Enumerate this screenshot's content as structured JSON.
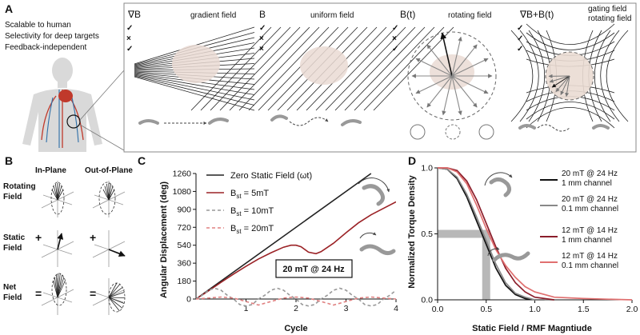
{
  "panel_a": {
    "label": "A",
    "criteria": [
      "Scalable to human",
      "Selectivity for deep targets",
      "Feedback-independent"
    ],
    "fields": [
      {
        "formula": "∇B",
        "name": "gradient field",
        "marks": [
          "✓",
          "×",
          "✓"
        ]
      },
      {
        "formula": "B",
        "name": "uniform field",
        "marks": [
          "✓",
          "×",
          "×"
        ]
      },
      {
        "formula": "B(t)",
        "name": "rotating field",
        "marks": [
          "✓",
          "×",
          "✓"
        ]
      },
      {
        "formula": "∇B+B(t)",
        "name": "gating field",
        "name2": "rotating field",
        "marks": [
          "✓",
          "✓",
          "✓"
        ]
      }
    ],
    "check_color": "#222222",
    "cross_color": "#b03030"
  },
  "panel_b": {
    "label": "B",
    "col_headers": [
      "In-Plane",
      "Out-of-Plane"
    ],
    "rows": [
      {
        "label": [
          "Rotating",
          "Field"
        ],
        "op": ""
      },
      {
        "label": [
          "Static",
          "Field"
        ],
        "op": "+"
      },
      {
        "label": [
          "Net",
          "Field"
        ],
        "op": "="
      }
    ]
  },
  "panel_c": {
    "label": "C",
    "chart_data": {
      "type": "line",
      "xlabel": "Cycle",
      "ylabel": "Angular Displacement (deg)",
      "xlim": [
        0,
        4
      ],
      "ylim": [
        0,
        1260
      ],
      "xticks": [
        1,
        2,
        3,
        4
      ],
      "yticks": [
        0,
        180,
        360,
        540,
        720,
        900,
        1080,
        1260
      ],
      "annotation": "20 mT @ 24 Hz",
      "series": [
        {
          "name": "Zero Static Field (ωt)",
          "legend": [
            "Zero Static Field (ωt)"
          ],
          "color": "#222222",
          "dash": "",
          "x": [
            0,
            3.5
          ],
          "y": [
            0,
            1260
          ]
        },
        {
          "name": "Bst = 5mT",
          "legend": [
            "B",
            "st",
            " = 5mT"
          ],
          "color": "#9b2226",
          "dash": "",
          "x": [
            0,
            0.25,
            0.5,
            0.75,
            1.0,
            1.25,
            1.5,
            1.75,
            1.9,
            2.0,
            2.1,
            2.25,
            2.4,
            2.5,
            2.75,
            3.0,
            3.25,
            3.5,
            3.75,
            4.0
          ],
          "y": [
            0,
            82,
            168,
            250,
            328,
            402,
            465,
            520,
            540,
            540,
            525,
            470,
            455,
            475,
            560,
            665,
            765,
            845,
            910,
            975
          ]
        },
        {
          "name": "Bst = 10mT",
          "legend": [
            "B",
            "st",
            " = 10mT"
          ],
          "color": "#999999",
          "dash": "4,3",
          "x": [
            0,
            0.125,
            0.25,
            0.375,
            0.5,
            0.625,
            0.75,
            0.875,
            1.0,
            1.125,
            1.25,
            1.375,
            1.5,
            1.625,
            1.75,
            1.875,
            2.0,
            2.125,
            2.25,
            2.375,
            2.5,
            2.625,
            2.75,
            2.875,
            3.0,
            3.125,
            3.25,
            3.375,
            3.5,
            3.625,
            3.75,
            3.875,
            4.0
          ],
          "y": [
            0,
            38,
            88,
            108,
            88,
            38,
            0,
            -55,
            -70,
            -55,
            0,
            38,
            88,
            108,
            88,
            38,
            0,
            -55,
            -70,
            -55,
            0,
            38,
            88,
            108,
            88,
            38,
            0,
            -55,
            -70,
            -55,
            0,
            38,
            88
          ]
        },
        {
          "name": "Bst = 20mT",
          "legend": [
            "B",
            "st",
            " = 20mT"
          ],
          "color": "#e08080",
          "dash": "4,3",
          "x": [
            0,
            0.25,
            0.5,
            0.75,
            1.0,
            1.25,
            1.5,
            1.75,
            2.0,
            2.25,
            2.5,
            2.75,
            3.0,
            3.25,
            3.5,
            3.75,
            4.0
          ],
          "y": [
            0,
            10,
            20,
            10,
            -25,
            -60,
            -25,
            10,
            20,
            10,
            -25,
            -60,
            -25,
            10,
            20,
            10,
            0
          ]
        }
      ]
    }
  },
  "panel_d": {
    "label": "D",
    "chart_data": {
      "type": "line",
      "xlabel": "Static Field / RMF Magntiude",
      "ylabel": "Normalized Torque Density",
      "xlim": [
        0,
        2.0
      ],
      "ylim": [
        0,
        1.0
      ],
      "xticks": [
        0.0,
        0.5,
        1.0,
        1.5,
        2.0
      ],
      "yticks": [
        0,
        0.5,
        1.0
      ],
      "series": [
        {
          "name": "20 mT @ 24 Hz, 1 mm channel",
          "legend": [
            "20 mT @ 24 Hz",
            "1 mm channel"
          ],
          "color": "#111111",
          "x": [
            0,
            0.1,
            0.2,
            0.3,
            0.4,
            0.5,
            0.6,
            0.7,
            0.8,
            0.9,
            1.0,
            1.1
          ],
          "y": [
            1.0,
            0.99,
            0.92,
            0.78,
            0.6,
            0.42,
            0.24,
            0.11,
            0.04,
            0.01,
            0.0,
            0.0
          ]
        },
        {
          "name": "20 mT @ 24 Hz, 0.1 mm channel",
          "legend": [
            "20 mT @ 24 Hz",
            "0.1 mm channel"
          ],
          "color": "#888888",
          "x": [
            0,
            0.1,
            0.2,
            0.3,
            0.4,
            0.5,
            0.6,
            0.7,
            0.8,
            0.9,
            1.0,
            1.2
          ],
          "y": [
            1.0,
            0.99,
            0.93,
            0.8,
            0.63,
            0.45,
            0.27,
            0.13,
            0.05,
            0.02,
            0.0,
            0.0
          ]
        },
        {
          "name": "12 mT @ 14 Hz, 1 mm channel",
          "legend": [
            "12 mT @ 14 Hz",
            "1 mm channel"
          ],
          "color": "#8b1e2b",
          "x": [
            0,
            0.1,
            0.2,
            0.3,
            0.4,
            0.5,
            0.6,
            0.7,
            0.8,
            0.9,
            1.0,
            1.1,
            1.2
          ],
          "y": [
            1.0,
            1.0,
            0.98,
            0.9,
            0.76,
            0.58,
            0.4,
            0.24,
            0.13,
            0.06,
            0.02,
            0.01,
            0.0
          ]
        },
        {
          "name": "12 mT @ 14 Hz, 0.1 mm channel",
          "legend": [
            "12 mT @ 14 Hz",
            "0.1 mm channel"
          ],
          "color": "#e07070",
          "x": [
            0,
            0.1,
            0.2,
            0.3,
            0.4,
            0.5,
            0.6,
            0.7,
            0.8,
            0.9,
            1.0,
            1.2,
            1.5,
            2.0
          ],
          "y": [
            1.0,
            1.0,
            0.97,
            0.88,
            0.72,
            0.54,
            0.38,
            0.26,
            0.17,
            0.1,
            0.06,
            0.02,
            0.01,
            0.0
          ]
        }
      ],
      "highlight_color": "#b8b8b8",
      "highlight_x": 0.5,
      "highlight_y": 0.5
    }
  }
}
